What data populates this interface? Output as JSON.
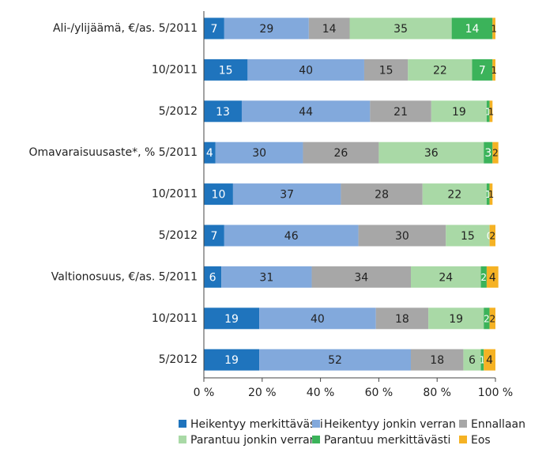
{
  "chart_data": {
    "type": "stacked_barh",
    "categories": [
      "Ali-/ylijäämä, €/as. 5/2011",
      "10/2011",
      "5/2012",
      "Omavaraisuusaste*, % 5/2011",
      "10/2011",
      "5/2012",
      "Valtionosuus, €/as. 5/2011",
      "10/2011",
      "5/2012"
    ],
    "series": [
      {
        "name": "Heikentyy merkittävästi",
        "color": "#1f74bd",
        "label_color": "#ffffff",
        "values": [
          7,
          15,
          13,
          4,
          10,
          7,
          6,
          19,
          19
        ]
      },
      {
        "name": "Heikentyy jonkin verran",
        "color": "#82a9dc",
        "label_color": "#222222",
        "values": [
          29,
          40,
          44,
          30,
          37,
          46,
          31,
          40,
          52
        ]
      },
      {
        "name": "Ennallaan",
        "color": "#a7a7a7",
        "label_color": "#222222",
        "values": [
          14,
          15,
          21,
          26,
          28,
          30,
          34,
          18,
          18
        ]
      },
      {
        "name": "Parantuu jonkin verran",
        "color": "#a9d9a6",
        "label_color": "#222222",
        "values": [
          35,
          22,
          19,
          36,
          22,
          15,
          24,
          19,
          6
        ]
      },
      {
        "name": "Parantuu merkittävästi",
        "color": "#3bb35a",
        "label_color": "#ffffff",
        "values": [
          14,
          7,
          1,
          3,
          1,
          0,
          2,
          2,
          1
        ]
      },
      {
        "name": "Eos",
        "color": "#f5b224",
        "label_color": "#222222",
        "values": [
          1,
          1,
          1,
          2,
          1,
          2,
          4,
          2,
          4
        ]
      }
    ],
    "xlim": [
      0,
      100
    ],
    "xticks": [
      {
        "value": 0,
        "label": "0 %"
      },
      {
        "value": 20,
        "label": "20 %"
      },
      {
        "value": 40,
        "label": "40 %"
      },
      {
        "value": 60,
        "label": "60 %"
      },
      {
        "value": 80,
        "label": "80 %"
      },
      {
        "value": 100,
        "label": "100 %"
      }
    ]
  }
}
